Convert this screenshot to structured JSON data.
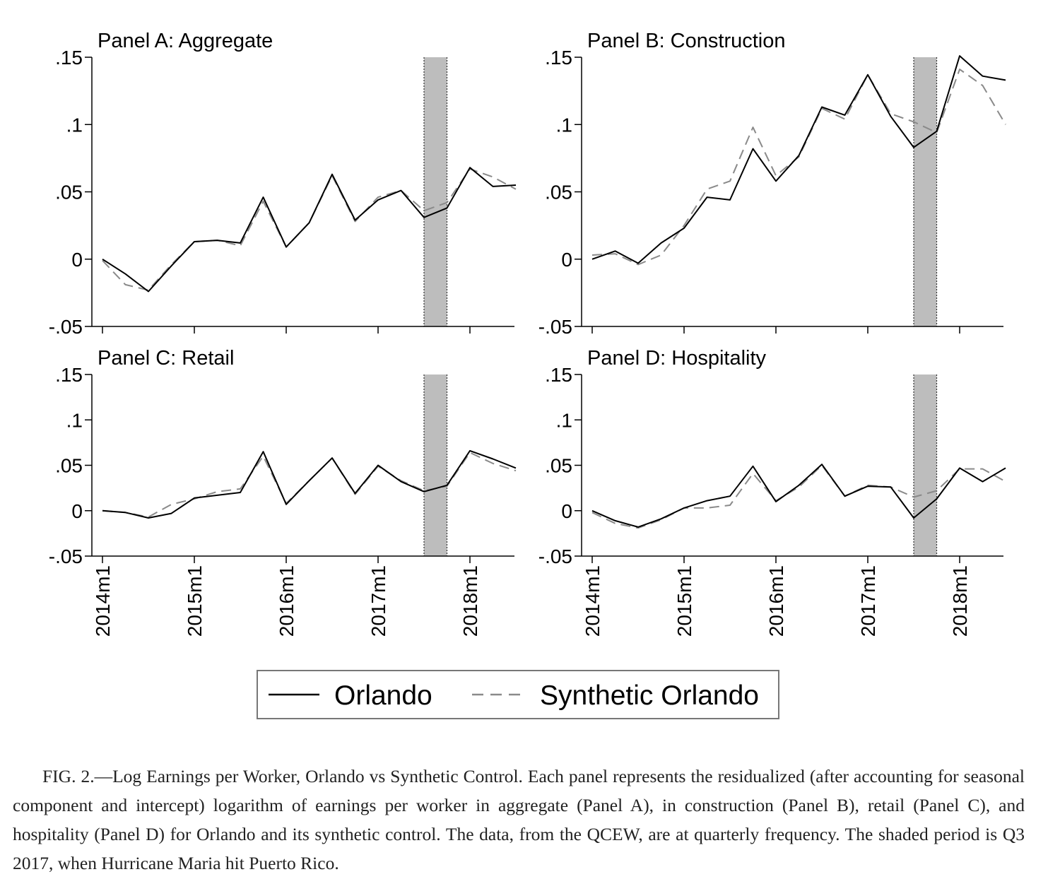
{
  "chart_data": [
    {
      "type": "line",
      "title": "Panel A: Aggregate",
      "xlabel": "",
      "ylabel": "",
      "x": [
        "2014q1",
        "2014q2",
        "2014q3",
        "2014q4",
        "2015q1",
        "2015q2",
        "2015q3",
        "2015q4",
        "2016q1",
        "2016q2",
        "2016q3",
        "2016q4",
        "2017q1",
        "2017q2",
        "2017q3",
        "2017q4",
        "2018q1",
        "2018q2",
        "2018q3"
      ],
      "series": [
        {
          "name": "Orlando",
          "values": [
            0.0,
            -0.011,
            -0.024,
            -0.005,
            0.013,
            0.014,
            0.012,
            0.046,
            0.009,
            0.027,
            0.063,
            0.029,
            0.044,
            0.051,
            0.031,
            0.038,
            0.068,
            0.054,
            0.055
          ]
        },
        {
          "name": "Synthetic Orlando",
          "values": [
            -0.001,
            -0.019,
            -0.023,
            -0.004,
            0.013,
            0.014,
            0.01,
            0.043,
            0.009,
            0.027,
            0.062,
            0.028,
            0.046,
            0.051,
            0.036,
            0.042,
            0.067,
            0.061,
            0.052
          ]
        }
      ],
      "yticks": [
        -0.05,
        0,
        0.05,
        0.1,
        0.15
      ],
      "ytick_labels": [
        "-.05",
        "0",
        ".05",
        ".1",
        ".15"
      ],
      "ylim": [
        -0.05,
        0.15
      ],
      "shaded_period": "2017q3",
      "show_x_labels": false
    },
    {
      "type": "line",
      "title": "Panel B: Construction",
      "xlabel": "",
      "ylabel": "",
      "x": [
        "2014q1",
        "2014q2",
        "2014q3",
        "2014q4",
        "2015q1",
        "2015q2",
        "2015q3",
        "2015q4",
        "2016q1",
        "2016q2",
        "2016q3",
        "2016q4",
        "2017q1",
        "2017q2",
        "2017q3",
        "2017q4",
        "2018q1",
        "2018q2",
        "2018q3"
      ],
      "series": [
        {
          "name": "Orlando",
          "values": [
            0.0,
            0.006,
            -0.003,
            0.012,
            0.023,
            0.046,
            0.044,
            0.082,
            0.058,
            0.077,
            0.113,
            0.107,
            0.137,
            0.106,
            0.083,
            0.095,
            0.151,
            0.136,
            0.133
          ]
        },
        {
          "name": "Synthetic Orlando",
          "values": [
            0.003,
            0.004,
            -0.004,
            0.003,
            0.025,
            0.052,
            0.058,
            0.098,
            0.062,
            0.076,
            0.112,
            0.104,
            0.137,
            0.108,
            0.102,
            0.094,
            0.141,
            0.129,
            0.1
          ]
        }
      ],
      "yticks": [
        -0.05,
        0,
        0.05,
        0.1,
        0.15
      ],
      "ytick_labels": [
        "-.05",
        "0",
        ".05",
        ".1",
        ".15"
      ],
      "ylim": [
        -0.05,
        0.15
      ],
      "shaded_period": "2017q3",
      "show_x_labels": false
    },
    {
      "type": "line",
      "title": "Panel C: Retail",
      "xlabel": "",
      "ylabel": "",
      "x": [
        "2014q1",
        "2014q2",
        "2014q3",
        "2014q4",
        "2015q1",
        "2015q2",
        "2015q3",
        "2015q4",
        "2016q1",
        "2016q2",
        "2016q3",
        "2016q4",
        "2017q1",
        "2017q2",
        "2017q3",
        "2017q4",
        "2018q1",
        "2018q2",
        "2018q3"
      ],
      "series": [
        {
          "name": "Orlando",
          "values": [
            0.0,
            -0.002,
            -0.008,
            -0.003,
            0.014,
            0.017,
            0.02,
            0.065,
            0.007,
            0.033,
            0.058,
            0.019,
            0.05,
            0.032,
            0.021,
            0.028,
            0.066,
            0.057,
            0.047
          ]
        },
        {
          "name": "Synthetic Orlando",
          "values": [
            0.0,
            -0.002,
            -0.007,
            0.007,
            0.013,
            0.021,
            0.024,
            0.06,
            0.008,
            0.033,
            0.058,
            0.018,
            0.049,
            0.033,
            0.022,
            0.027,
            0.064,
            0.052,
            0.044
          ]
        }
      ],
      "yticks": [
        -0.05,
        0,
        0.05,
        0.1,
        0.15
      ],
      "ytick_labels": [
        "-.05",
        "0",
        ".05",
        ".1",
        ".15"
      ],
      "ylim": [
        -0.05,
        0.15
      ],
      "shaded_period": "2017q3",
      "show_x_labels": true
    },
    {
      "type": "line",
      "title": "Panel D: Hospitality",
      "xlabel": "",
      "ylabel": "",
      "x": [
        "2014q1",
        "2014q2",
        "2014q3",
        "2014q4",
        "2015q1",
        "2015q2",
        "2015q3",
        "2015q4",
        "2016q1",
        "2016q2",
        "2016q3",
        "2016q4",
        "2017q1",
        "2017q2",
        "2017q3",
        "2017q4",
        "2018q1",
        "2018q2",
        "2018q3"
      ],
      "series": [
        {
          "name": "Orlando",
          "values": [
            0.0,
            -0.011,
            -0.018,
            -0.009,
            0.003,
            0.011,
            0.016,
            0.049,
            0.01,
            0.028,
            0.051,
            0.016,
            0.027,
            0.026,
            -0.008,
            0.013,
            0.047,
            0.032,
            0.047
          ]
        },
        {
          "name": "Synthetic Orlando",
          "values": [
            -0.002,
            -0.014,
            -0.019,
            -0.01,
            0.003,
            0.003,
            0.006,
            0.041,
            0.011,
            0.026,
            0.05,
            0.016,
            0.028,
            0.026,
            0.015,
            0.022,
            0.046,
            0.046,
            0.032
          ]
        }
      ],
      "yticks": [
        -0.05,
        0,
        0.05,
        0.1,
        0.15
      ],
      "ytick_labels": [
        "-.05",
        "0",
        ".05",
        ".1",
        ".15"
      ],
      "ylim": [
        -0.05,
        0.15
      ],
      "shaded_period": "2017q3",
      "show_x_labels": true
    }
  ],
  "x_tick_labels": [
    "2014m1",
    "2015m1",
    "2016m1",
    "2017m1",
    "2018m1"
  ],
  "legend": {
    "placement": "bottom-center",
    "items": [
      {
        "label": "Orlando",
        "style": "solid",
        "color": "#000000"
      },
      {
        "label": "Synthetic Orlando",
        "style": "dashed",
        "color": "#888888"
      }
    ]
  },
  "colors": {
    "orlando": "#000000",
    "synthetic": "#8a8a8a",
    "shade": "#bdbdbd"
  },
  "caption": "FIG. 2.—Log Earnings per Worker, Orlando vs Synthetic Control. Each panel represents the residualized (after accounting for seasonal component and intercept) logarithm of earnings per worker in aggregate (Panel A), in construction (Panel B), retail (Panel C), and hospitality (Panel D) for Orlando and its synthetic control. The data, from the QCEW, are at quarterly frequency. The shaded period is Q3 2017, when Hurricane Maria hit Puerto Rico."
}
